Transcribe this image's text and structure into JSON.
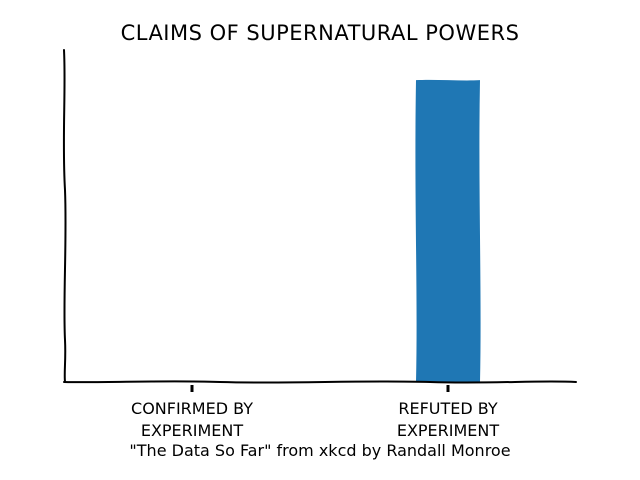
{
  "chart_data": {
    "type": "bar",
    "title": "CLAIMS OF SUPERNATURAL POWERS",
    "categories": [
      "CONFIRMED BY\nEXPERIMENT",
      "REFUTED BY\nEXPERIMENT"
    ],
    "values": [
      0,
      100
    ],
    "ylim": [
      0,
      110
    ],
    "xlabel": "",
    "ylabel": "",
    "grid": false,
    "bar_color": "#1f77b4",
    "style": "xkcd"
  },
  "caption": "\"The Data So Far\" from xkcd by Randall Monroe"
}
